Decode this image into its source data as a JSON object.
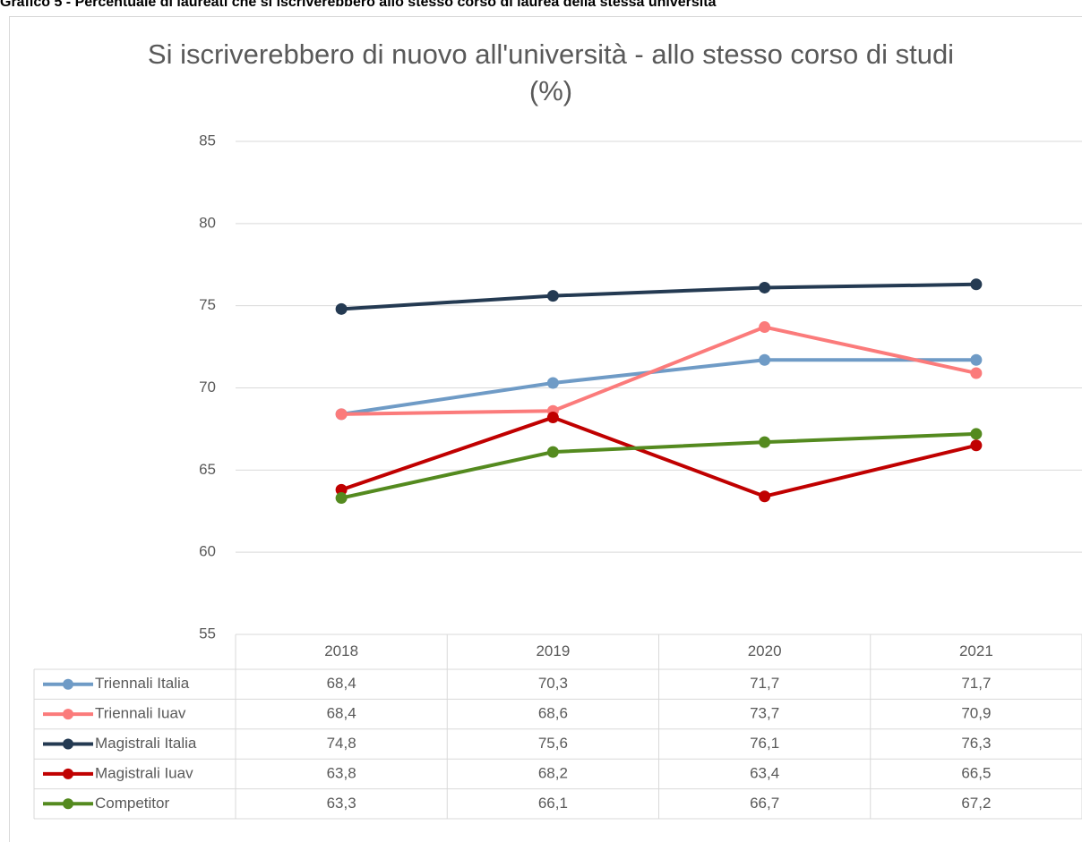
{
  "chart_data": {
    "type": "line",
    "caption": "Grafico 5 - Percentuale di laureati che si iscriverebbero allo stesso corso di laurea della stessa università",
    "title": "Si iscriverebbero di nuovo all'università - allo stesso corso di studi (%)",
    "categories": [
      "2018",
      "2019",
      "2020",
      "2021"
    ],
    "ylim": [
      55,
      85
    ],
    "yticks": [
      55,
      60,
      65,
      70,
      75,
      80,
      85
    ],
    "grid": true,
    "series": [
      {
        "name": "Triennali Italia",
        "color": "#6f9bc6",
        "values": [
          68.4,
          70.3,
          71.7,
          71.7
        ],
        "value_labels": [
          "68,4",
          "70,3",
          "71,7",
          "71,7"
        ]
      },
      {
        "name": "Triennali Iuav",
        "color": "#fb7b7b",
        "values": [
          68.4,
          68.6,
          73.7,
          70.9
        ],
        "value_labels": [
          "68,4",
          "68,6",
          "73,7",
          "70,9"
        ]
      },
      {
        "name": "Magistrali Italia",
        "color": "#243a52",
        "values": [
          74.8,
          75.6,
          76.1,
          76.3
        ],
        "value_labels": [
          "74,8",
          "75,6",
          "76,1",
          "76,3"
        ]
      },
      {
        "name": "Magistrali Iuav",
        "color": "#c00000",
        "values": [
          63.8,
          68.2,
          63.4,
          66.5
        ],
        "value_labels": [
          "63,8",
          "68,2",
          "63,4",
          "66,5"
        ]
      },
      {
        "name": "Competitor",
        "color": "#548a1f",
        "values": [
          63.3,
          66.1,
          66.7,
          67.2
        ],
        "value_labels": [
          "63,3",
          "66,1",
          "66,7",
          "67,2"
        ]
      }
    ]
  }
}
